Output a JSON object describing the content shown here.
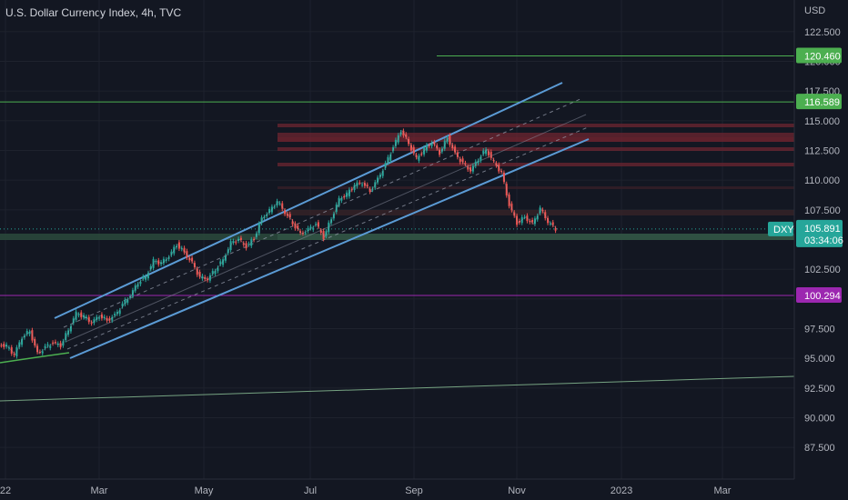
{
  "chart_data": {
    "type": "line",
    "title": "U.S. Dollar Currency Index, 4h, TVC",
    "currency": "USD",
    "symbol": "DXY",
    "last_price": "105.891",
    "countdown": "03:34:06",
    "y_ticks": [
      "87.500",
      "90.000",
      "92.500",
      "95.000",
      "97.500",
      "100.000",
      "102.500",
      "105.000",
      "107.500",
      "110.000",
      "112.500",
      "115.000",
      "117.500",
      "120.000",
      "122.500"
    ],
    "y_range": [
      86.3,
      123.5
    ],
    "x_ticks": [
      "22",
      "Mar",
      "May",
      "Jul",
      "Sep",
      "Nov",
      "2023",
      "Mar"
    ],
    "horizontal_levels": [
      {
        "value": 120.46,
        "label": "120.460",
        "color": "#4caf50"
      },
      {
        "value": 116.589,
        "label": "116.589",
        "color": "#4caf50"
      },
      {
        "value": 100.294,
        "label": "100.294",
        "color": "#9c27b0"
      }
    ],
    "series": [
      {
        "values": [
          [
            "Jan",
            96.2
          ],
          [
            "Jan",
            96.0
          ],
          [
            "Jan",
            95.3
          ],
          [
            "Feb",
            96.8
          ],
          [
            "Feb",
            97.3
          ],
          [
            "Feb",
            95.4
          ],
          [
            "Feb",
            95.9
          ],
          [
            "Feb",
            96.3
          ],
          [
            "Mar",
            96.1
          ],
          [
            "Mar",
            97.4
          ],
          [
            "Mar",
            98.8
          ],
          [
            "Mar",
            98.5
          ],
          [
            "Mar",
            98.0
          ],
          [
            "Mar",
            98.6
          ],
          [
            "Mar",
            98.2
          ],
          [
            "Apr",
            98.6
          ],
          [
            "Apr",
            99.5
          ],
          [
            "Apr",
            100.3
          ],
          [
            "Apr",
            101.4
          ],
          [
            "Apr",
            101.9
          ],
          [
            "Apr",
            103.2
          ],
          [
            "May",
            103.0
          ],
          [
            "May",
            103.6
          ],
          [
            "May",
            104.6
          ],
          [
            "May",
            103.9
          ],
          [
            "May",
            103.0
          ],
          [
            "May",
            101.8
          ],
          [
            "Jun",
            101.7
          ],
          [
            "Jun",
            102.5
          ],
          [
            "Jun",
            103.3
          ],
          [
            "Jun",
            104.7
          ],
          [
            "Jun",
            105.0
          ],
          [
            "Jun",
            104.4
          ],
          [
            "Jul",
            105.1
          ],
          [
            "Jul",
            106.8
          ],
          [
            "Jul",
            107.4
          ],
          [
            "Jul",
            108.2
          ],
          [
            "Jul",
            107.3
          ],
          [
            "Jul",
            106.4
          ],
          [
            "Aug",
            105.5
          ],
          [
            "Aug",
            105.8
          ],
          [
            "Aug",
            106.3
          ],
          [
            "Aug",
            105.2
          ],
          [
            "Aug",
            106.8
          ],
          [
            "Aug",
            108.4
          ],
          [
            "Aug",
            108.8
          ],
          [
            "Sep",
            109.6
          ],
          [
            "Sep",
            109.8
          ],
          [
            "Sep",
            109.1
          ],
          [
            "Sep",
            110.1
          ],
          [
            "Sep",
            111.3
          ],
          [
            "Sep",
            112.8
          ],
          [
            "Sep",
            114.2
          ],
          [
            "Sep",
            113.1
          ],
          [
            "Oct",
            111.8
          ],
          [
            "Oct",
            112.6
          ],
          [
            "Oct",
            113.2
          ],
          [
            "Oct",
            112.3
          ],
          [
            "Oct",
            113.6
          ],
          [
            "Oct",
            112.2
          ],
          [
            "Oct",
            111.4
          ],
          [
            "Oct",
            110.8
          ],
          [
            "Nov",
            111.8
          ],
          [
            "Nov",
            112.6
          ],
          [
            "Nov",
            111.5
          ],
          [
            "Nov",
            110.6
          ],
          [
            "Nov",
            107.9
          ],
          [
            "Nov",
            106.4
          ],
          [
            "Nov",
            106.9
          ],
          [
            "Nov",
            106.3
          ],
          [
            "Nov",
            107.6
          ],
          [
            "Nov",
            106.5
          ],
          [
            "Nov",
            105.9
          ]
        ]
      }
    ]
  }
}
